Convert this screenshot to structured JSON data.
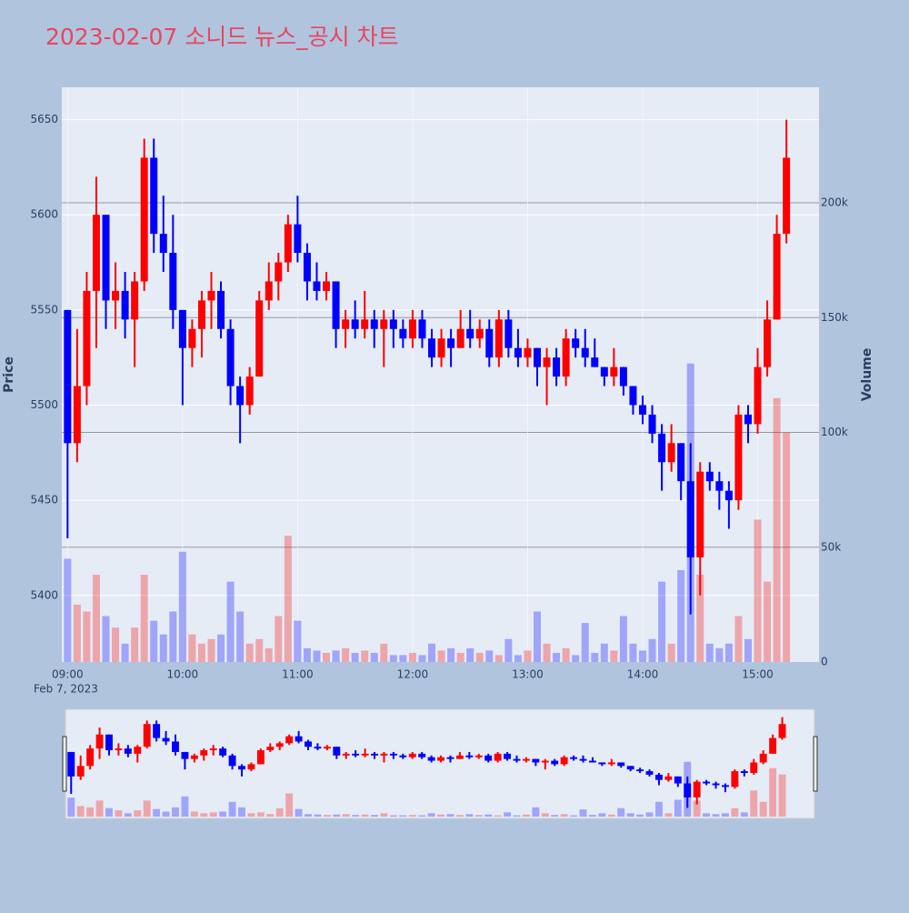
{
  "chart_data": {
    "type": "candlestick",
    "title": "2023-02-07 소니드 뉴스_공시 차트",
    "ylabel": "Price",
    "y2label": "Volume",
    "date_label": "Feb 7, 2023",
    "up_color": "#ff0000",
    "down_color": "#0000ff",
    "x": [
      "09:00",
      "09:05",
      "09:10",
      "09:15",
      "09:20",
      "09:25",
      "09:30",
      "09:35",
      "09:40",
      "09:45",
      "09:50",
      "09:55",
      "10:00",
      "10:05",
      "10:10",
      "10:15",
      "10:20",
      "10:25",
      "10:30",
      "10:35",
      "10:40",
      "10:45",
      "10:50",
      "10:55",
      "11:00",
      "11:05",
      "11:10",
      "11:15",
      "11:20",
      "11:25",
      "11:30",
      "11:35",
      "11:40",
      "11:45",
      "11:50",
      "11:55",
      "12:00",
      "12:05",
      "12:10",
      "12:15",
      "12:20",
      "12:25",
      "12:30",
      "12:35",
      "12:40",
      "12:45",
      "12:50",
      "12:55",
      "13:00",
      "13:05",
      "13:10",
      "13:15",
      "13:20",
      "13:25",
      "13:30",
      "13:35",
      "13:40",
      "13:45",
      "13:50",
      "13:55",
      "14:00",
      "14:05",
      "14:10",
      "14:15",
      "14:20",
      "14:25",
      "14:30",
      "14:35",
      "14:40",
      "14:45",
      "14:50",
      "14:55",
      "15:00",
      "15:05",
      "15:10",
      "15:15"
    ],
    "open": [
      5550,
      5480,
      5510,
      5560,
      5600,
      5555,
      5560,
      5545,
      5565,
      5630,
      5590,
      5580,
      5550,
      5530,
      5540,
      5555,
      5560,
      5540,
      5510,
      5500,
      5515,
      5555,
      5565,
      5575,
      5595,
      5580,
      5565,
      5560,
      5565,
      5540,
      5545,
      5540,
      5545,
      5540,
      5545,
      5540,
      5535,
      5545,
      5535,
      5525,
      5535,
      5530,
      5540,
      5535,
      5540,
      5525,
      5545,
      5530,
      5525,
      5530,
      5520,
      5525,
      5515,
      5535,
      5530,
      5525,
      5520,
      5515,
      5520,
      5510,
      5500,
      5495,
      5485,
      5470,
      5480,
      5460,
      5420,
      5465,
      5460,
      5455,
      5450,
      5495,
      5490,
      5520,
      5545,
      5590
    ],
    "high": [
      5550,
      5540,
      5570,
      5620,
      5600,
      5575,
      5570,
      5570,
      5640,
      5640,
      5610,
      5600,
      5550,
      5545,
      5560,
      5570,
      5565,
      5545,
      5515,
      5520,
      5560,
      5575,
      5580,
      5600,
      5610,
      5585,
      5575,
      5570,
      5565,
      5550,
      5555,
      5560,
      5550,
      5550,
      5550,
      5545,
      5550,
      5550,
      5540,
      5540,
      5540,
      5550,
      5550,
      5545,
      5545,
      5550,
      5550,
      5540,
      5535,
      5530,
      5530,
      5530,
      5540,
      5540,
      5540,
      5535,
      5520,
      5530,
      5520,
      5510,
      5505,
      5500,
      5490,
      5490,
      5480,
      5480,
      5470,
      5470,
      5465,
      5460,
      5500,
      5500,
      5530,
      5555,
      5600,
      5650
    ],
    "low": [
      5430,
      5470,
      5500,
      5530,
      5540,
      5540,
      5535,
      5520,
      5560,
      5580,
      5570,
      5540,
      5500,
      5520,
      5525,
      5540,
      5535,
      5500,
      5480,
      5495,
      5515,
      5550,
      5555,
      5570,
      5575,
      5555,
      5555,
      5555,
      5530,
      5530,
      5535,
      5535,
      5530,
      5520,
      5530,
      5530,
      5530,
      5530,
      5520,
      5520,
      5520,
      5530,
      5530,
      5530,
      5520,
      5520,
      5525,
      5520,
      5520,
      5510,
      5500,
      5510,
      5510,
      5525,
      5520,
      5520,
      5510,
      5510,
      5505,
      5495,
      5490,
      5480,
      5455,
      5465,
      5450,
      5390,
      5400,
      5455,
      5445,
      5435,
      5445,
      5480,
      5485,
      5515,
      5545,
      5585
    ],
    "close": [
      5480,
      5510,
      5560,
      5600,
      5555,
      5560,
      5545,
      5565,
      5630,
      5590,
      5580,
      5550,
      5530,
      5540,
      5555,
      5560,
      5540,
      5510,
      5500,
      5515,
      5555,
      5565,
      5575,
      5595,
      5580,
      5565,
      5560,
      5565,
      5540,
      5545,
      5540,
      5545,
      5540,
      5545,
      5540,
      5535,
      5545,
      5535,
      5525,
      5535,
      5530,
      5540,
      5535,
      5540,
      5525,
      5545,
      5530,
      5525,
      5530,
      5520,
      5525,
      5515,
      5535,
      5530,
      5525,
      5520,
      5515,
      5520,
      5510,
      5500,
      5495,
      5485,
      5470,
      5480,
      5460,
      5420,
      5465,
      5460,
      5455,
      5450,
      5495,
      5490,
      5520,
      5545,
      5590,
      5630
    ],
    "volume": [
      45000,
      25000,
      22000,
      38000,
      20000,
      15000,
      8000,
      15000,
      38000,
      18000,
      12000,
      22000,
      48000,
      12000,
      8000,
      10000,
      12000,
      35000,
      22000,
      8000,
      10000,
      6000,
      20000,
      55000,
      18000,
      6000,
      5000,
      4000,
      5000,
      6000,
      4000,
      5000,
      4000,
      8000,
      3000,
      3000,
      4000,
      3000,
      8000,
      5000,
      6000,
      4000,
      6000,
      4000,
      5000,
      3000,
      10000,
      3000,
      5000,
      22000,
      8000,
      4000,
      6000,
      3000,
      17000,
      4000,
      8000,
      5000,
      20000,
      8000,
      5000,
      10000,
      35000,
      8000,
      40000,
      130000,
      38000,
      8000,
      6000,
      8000,
      20000,
      10000,
      62000,
      35000,
      115000,
      100000
    ],
    "xlim": [
      "08:57",
      "15:32"
    ],
    "xticks": [
      "09:00",
      "10:00",
      "11:00",
      "12:00",
      "13:00",
      "14:00",
      "15:00"
    ],
    "ylim": [
      5365,
      5667
    ],
    "yticks": [
      5400,
      5450,
      5500,
      5550,
      5600,
      5650
    ],
    "y2lim": [
      0,
      250300
    ],
    "y2ticks": [
      0,
      {
        "value": 50000,
        "label": "50k"
      },
      {
        "value": 100000,
        "label": "100k"
      },
      {
        "value": 150000,
        "label": "150k"
      },
      {
        "value": 200000,
        "label": "200k"
      }
    ],
    "grid": true,
    "rangeslider": true
  }
}
